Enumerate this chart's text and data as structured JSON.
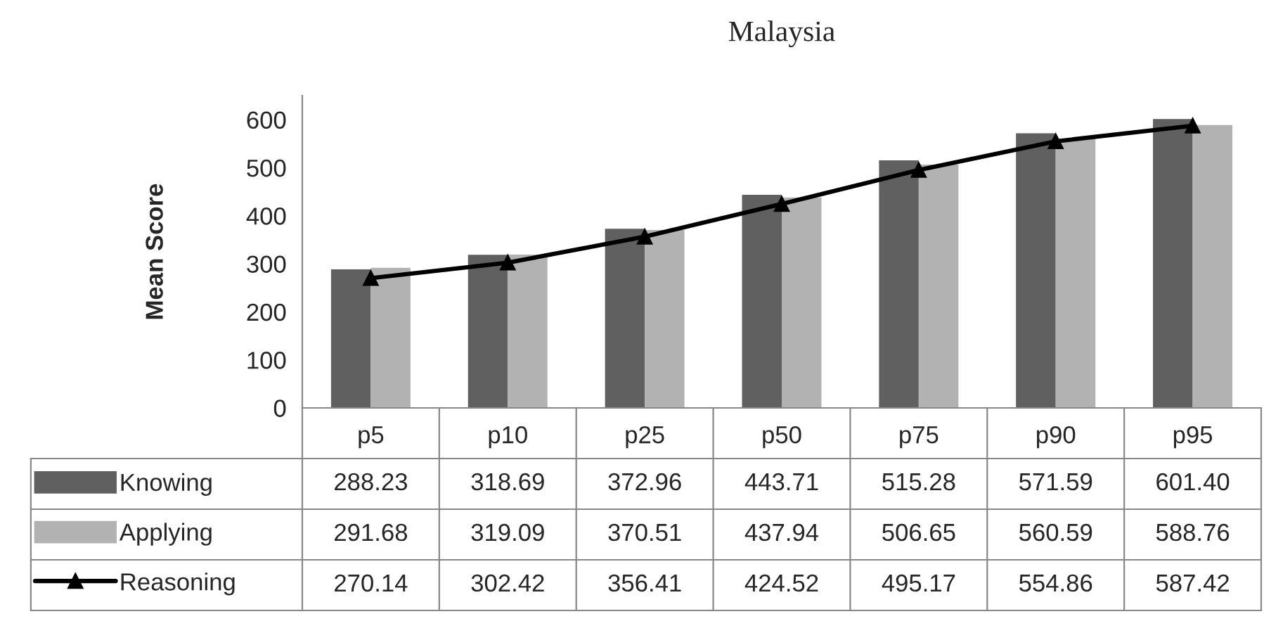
{
  "chart_data": {
    "type": "bar",
    "title": "Malaysia",
    "ylabel": "Mean Score",
    "categories": [
      "p5",
      "p10",
      "p25",
      "p50",
      "p75",
      "p90",
      "p95"
    ],
    "series": [
      {
        "name": "Knowing",
        "color": "#606060",
        "values": [
          288.23,
          318.69,
          372.96,
          443.71,
          515.28,
          571.59,
          601.4
        ],
        "value_labels": [
          "288.23",
          "318.69",
          "372.96",
          "443.71",
          "515.28",
          "571.59",
          "601.40"
        ]
      },
      {
        "name": "Applying",
        "color": "#b2b2b2",
        "values": [
          291.68,
          319.09,
          370.51,
          437.94,
          506.65,
          560.59,
          588.76
        ],
        "value_labels": [
          "291.68",
          "319.09",
          "370.51",
          "437.94",
          "506.65",
          "560.59",
          "588.76"
        ]
      },
      {
        "name": "Reasoning",
        "type": "line",
        "color": "#000000",
        "marker": "triangle",
        "line_style": "solid",
        "values": [
          270.14,
          302.42,
          356.41,
          424.52,
          495.17,
          554.86,
          587.42
        ],
        "value_labels": [
          "270.14",
          "302.42",
          "356.41",
          "424.52",
          "495.17",
          "554.86",
          "587.42"
        ]
      }
    ],
    "ylim": [
      0,
      650
    ],
    "yticks": [
      0,
      100,
      200,
      300,
      400,
      500,
      600
    ],
    "legend": "bottom"
  }
}
